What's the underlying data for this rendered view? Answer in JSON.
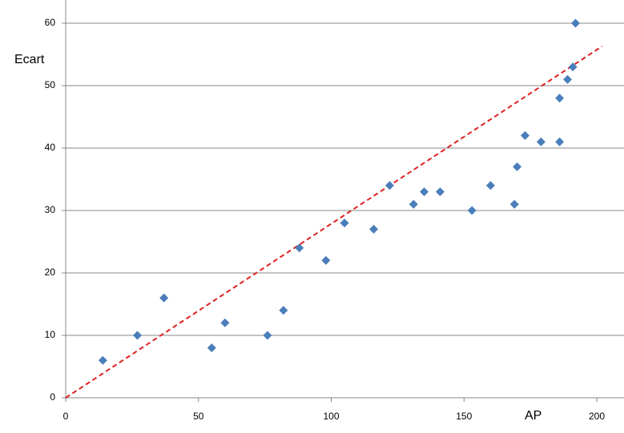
{
  "chart_data": {
    "type": "scatter",
    "x_label": "AP",
    "y_label": "Ecart",
    "x": [
      14,
      27,
      37,
      55,
      60,
      76,
      82,
      88,
      98,
      105,
      116,
      122,
      131,
      135,
      141,
      153,
      160,
      169,
      170,
      173,
      179,
      186,
      186,
      189,
      191,
      192
    ],
    "values": [
      6,
      10,
      16,
      8,
      12,
      10,
      14,
      24,
      22,
      28,
      27,
      34,
      31,
      33,
      33,
      30,
      34,
      31,
      37,
      42,
      41,
      41,
      48,
      51,
      53,
      60
    ],
    "color": "#4a7ebb",
    "trendline": {
      "x": [
        0,
        202
      ],
      "y": [
        0,
        56.3
      ],
      "color": "#e02020"
    },
    "xlim": [
      0,
      200
    ],
    "xticks": [
      0,
      50,
      100,
      150,
      200
    ],
    "ylim": [
      0,
      60
    ],
    "yticks": [
      0,
      10,
      20,
      30,
      40,
      50,
      60
    ],
    "grid": true
  }
}
